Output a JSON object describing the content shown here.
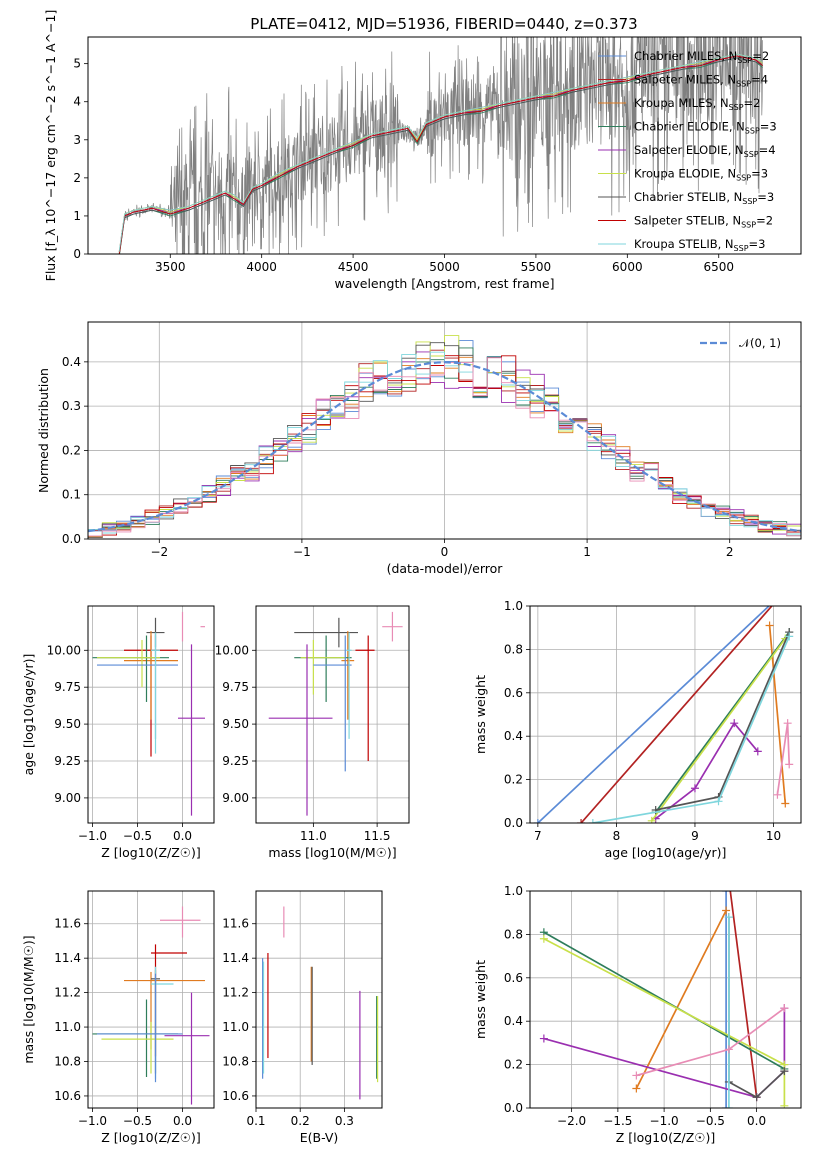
{
  "chart_data": [
    {
      "type": "line",
      "id": "spectrum",
      "title": "PLATE=0412, MJD=51936, FIBERID=0440, z=0.373",
      "xlabel": "wavelength [Angstrom, rest frame]",
      "ylabel": "Flux [f_λ 10^−17 erg cm^−2 s^−1 A^−1]",
      "xlim": [
        3050,
        6950
      ],
      "ylim": [
        0,
        5.7
      ],
      "xticks": [
        3500,
        4000,
        4500,
        5000,
        5500,
        6000,
        6500
      ],
      "yticks": [
        0,
        1,
        2,
        3,
        4,
        5
      ],
      "grid": false,
      "legend": "top-right",
      "legend_entries": [
        {
          "name": "Chabrier MILES",
          "nssp": "2",
          "color": "#5b8bd6"
        },
        {
          "name": "Salpeter MILES",
          "nssp": "4",
          "color": "#b22222"
        },
        {
          "name": "Kroupa MILES",
          "nssp": "2",
          "color": "#e07b20"
        },
        {
          "name": "Chabrier ELODIE",
          "nssp": "3",
          "color": "#2e7d5b"
        },
        {
          "name": "Salpeter ELODIE",
          "nssp": "4",
          "color": "#9a2fb0"
        },
        {
          "name": "Kroupa ELODIE",
          "nssp": "3",
          "color": "#c8e04a"
        },
        {
          "name": "Chabrier STELIB",
          "nssp": "3",
          "color": "#555555"
        },
        {
          "name": "Salpeter STELIB",
          "nssp": "2",
          "color": "#c00000"
        },
        {
          "name": "Kroupa STELIB",
          "nssp": "3",
          "color": "#7fd6dd"
        }
      ],
      "model_x": [
        3220,
        3250,
        3300,
        3400,
        3500,
        3600,
        3700,
        3800,
        3850,
        3900,
        3950,
        4000,
        4100,
        4200,
        4300,
        4400,
        4500,
        4600,
        4700,
        4800,
        4850,
        4900,
        5000,
        5100,
        5200,
        5300,
        5400,
        5500,
        5600,
        5700,
        5800,
        5900,
        6000,
        6100,
        6200,
        6300,
        6400,
        6500,
        6600,
        6700,
        6740
      ],
      "model_y": [
        0,
        1.0,
        1.1,
        1.2,
        1.1,
        1.2,
        1.4,
        1.6,
        1.5,
        1.3,
        1.7,
        1.8,
        2.1,
        2.3,
        2.5,
        2.7,
        2.9,
        3.1,
        3.2,
        3.3,
        3.0,
        3.4,
        3.6,
        3.7,
        3.8,
        3.9,
        4.0,
        4.1,
        4.2,
        4.3,
        4.4,
        4.5,
        4.6,
        4.7,
        4.8,
        4.9,
        5.0,
        5.1,
        5.2,
        5.1,
        5.0
      ]
    },
    {
      "type": "line",
      "id": "residuals",
      "xlabel": "(data-model)/error",
      "ylabel": "Normed distribution",
      "xlim": [
        -2.5,
        2.5
      ],
      "ylim": [
        0,
        0.49
      ],
      "xticks": [
        -2,
        -1,
        0,
        1,
        2
      ],
      "yticks": [
        0,
        0.1,
        0.2,
        0.3,
        0.4
      ],
      "grid": true,
      "legend": "top-right",
      "legend_entries": [
        {
          "name": "𝒩(0, 1)",
          "color": "#5b8bd6"
        }
      ],
      "series_colors": [
        "#5b8bd6",
        "#b22222",
        "#e07b20",
        "#2e7d5b",
        "#9a2fb0",
        "#c8e04a",
        "#555555",
        "#c00000",
        "#7fd6dd",
        "#e88cb5"
      ]
    },
    {
      "type": "scatter",
      "id": "age_vs_Z",
      "xlabel": "Z [log10(Z/Z☉)]",
      "ylabel": "age  [log10(age/yr)]",
      "xlim": [
        -1.05,
        0.35
      ],
      "ylim": [
        8.83,
        10.3
      ],
      "xticks": [
        -1.0,
        -0.5,
        0.0
      ],
      "yticks": [
        9.0,
        9.25,
        9.5,
        9.75,
        10.0
      ],
      "grid": true,
      "points": [
        {
          "x": 0.0,
          "y": 10.16,
          "ex": [
            -0.25,
            0.2
          ],
          "ey": [
            0.1,
            0.1
          ],
          "color": "#e88cb5"
        },
        {
          "x": -0.3,
          "y": 10.12,
          "ex": [
            0.1,
            0.1
          ],
          "ey": [
            0.1,
            0.1
          ],
          "color": "#555555"
        },
        {
          "x": -0.35,
          "y": 10.0,
          "ex": [
            0.3,
            0.3
          ],
          "ey": [
            0.72,
            0.1
          ],
          "color": "#c00000"
        },
        {
          "x": -0.35,
          "y": 9.93,
          "ex": [
            0.3,
            0.3
          ],
          "ey": [
            0.4,
            0.2
          ],
          "color": "#e07b20"
        },
        {
          "x": -0.4,
          "y": 9.95,
          "ex": [
            0.6,
            0.25
          ],
          "ey": [
            0.3,
            0.15
          ],
          "color": "#2e7d5b"
        },
        {
          "x": -0.45,
          "y": 9.95,
          "ex": [
            0.5,
            0.2
          ],
          "ey": [
            0.2,
            0.12
          ],
          "color": "#c8e04a"
        },
        {
          "x": -0.3,
          "y": 9.9,
          "ex": [
            0.65,
            0.25
          ],
          "ey": [
            0.5,
            0.2
          ],
          "color": "#5b8bd6"
        },
        {
          "x": -0.3,
          "y": 10.0,
          "ex": [
            0.05,
            0.05
          ],
          "ey": [
            0.7,
            0.12
          ],
          "color": "#7fd6dd"
        },
        {
          "x": 0.1,
          "y": 9.54,
          "ex": [
            0.15,
            0.15
          ],
          "ey": [
            0.66,
            0.5
          ],
          "color": "#9a2fb0"
        }
      ]
    },
    {
      "type": "scatter",
      "id": "age_vs_mass",
      "xlabel": "mass [log10(M/M☉)]",
      "ylabel": "",
      "xlim": [
        10.55,
        11.75
      ],
      "ylim": [
        8.83,
        10.3
      ],
      "xticks": [
        11.0,
        11.5
      ],
      "yticks": [
        9.0,
        9.25,
        9.5,
        9.75,
        10.0
      ],
      "grid": true,
      "points": [
        {
          "x": 11.62,
          "y": 10.16,
          "ex": [
            0.08,
            0.08
          ],
          "ey": [
            0.1,
            0.1
          ],
          "color": "#e88cb5"
        },
        {
          "x": 11.2,
          "y": 10.12,
          "ex": [
            0.35,
            0.15
          ],
          "ey": [
            0.1,
            0.1
          ],
          "color": "#555555"
        },
        {
          "x": 11.43,
          "y": 10.0,
          "ex": [
            0.1,
            0.05
          ],
          "ey": [
            0.75,
            0.1
          ],
          "color": "#c00000"
        },
        {
          "x": 11.27,
          "y": 9.93,
          "ex": [
            0.05,
            0.05
          ],
          "ey": [
            0.4,
            0.2
          ],
          "color": "#e07b20"
        },
        {
          "x": 11.1,
          "y": 9.95,
          "ex": [
            0.25,
            0.2
          ],
          "ey": [
            0.3,
            0.15
          ],
          "color": "#2e7d5b"
        },
        {
          "x": 11.0,
          "y": 9.95,
          "ex": [
            0.1,
            0.25
          ],
          "ey": [
            0.25,
            0.12
          ],
          "color": "#c8e04a"
        },
        {
          "x": 11.25,
          "y": 9.9,
          "ex": [
            0.25,
            0.05
          ],
          "ey": [
            0.72,
            0.2
          ],
          "color": "#5b8bd6"
        },
        {
          "x": 11.28,
          "y": 10.0,
          "ex": [
            0.02,
            0.02
          ],
          "ey": [
            0.6,
            0.12
          ],
          "color": "#7fd6dd"
        },
        {
          "x": 10.95,
          "y": 9.54,
          "ex": [
            0.3,
            0.2
          ],
          "ey": [
            0.66,
            0.5
          ],
          "color": "#9a2fb0"
        }
      ]
    },
    {
      "type": "line",
      "id": "weight_vs_age",
      "xlabel": "age  [log10(age/yr)]",
      "ylabel": "mass weight",
      "xlim": [
        6.9,
        10.35
      ],
      "ylim": [
        0,
        1.0
      ],
      "xticks": [
        7,
        8,
        9,
        10
      ],
      "yticks": [
        0,
        0.2,
        0.4,
        0.6,
        0.8,
        1.0
      ],
      "grid": true,
      "series": [
        {
          "color": "#5b8bd6",
          "points": [
            [
              7.0,
              0.0
            ],
            [
              10.0,
              1.02
            ]
          ]
        },
        {
          "color": "#b22222",
          "points": [
            [
              7.55,
              0.0
            ],
            [
              10.1,
              1.05
            ]
          ]
        },
        {
          "color": "#e07b20",
          "points": [
            [
              9.95,
              0.91
            ],
            [
              10.15,
              0.09
            ]
          ]
        },
        {
          "color": "#2e7d5b",
          "points": [
            [
              8.5,
              0.05
            ],
            [
              10.2,
              0.88
            ]
          ]
        },
        {
          "color": "#9a2fb0",
          "points": [
            [
              8.5,
              0.02
            ],
            [
              9.0,
              0.16
            ],
            [
              9.5,
              0.46
            ],
            [
              9.8,
              0.33
            ]
          ]
        },
        {
          "color": "#c8e04a",
          "points": [
            [
              8.45,
              0.01
            ],
            [
              10.15,
              0.85
            ]
          ]
        },
        {
          "color": "#555555",
          "points": [
            [
              8.5,
              0.06
            ],
            [
              9.3,
              0.12
            ],
            [
              10.2,
              0.88
            ]
          ]
        },
        {
          "color": "#7fd6dd",
          "points": [
            [
              7.7,
              0.0
            ],
            [
              9.3,
              0.1
            ],
            [
              10.2,
              0.86
            ]
          ]
        },
        {
          "color": "#e88cb5",
          "points": [
            [
              10.05,
              0.13
            ],
            [
              10.18,
              0.46
            ],
            [
              10.2,
              0.27
            ]
          ]
        }
      ]
    },
    {
      "type": "scatter",
      "id": "mass_vs_Z",
      "xlabel": "Z [log10(Z/Z☉)]",
      "ylabel": "mass [log10(M/M☉)]",
      "xlim": [
        -1.05,
        0.35
      ],
      "ylim": [
        10.53,
        11.79
      ],
      "xticks": [
        -1.0,
        -0.5,
        0.0
      ],
      "yticks": [
        10.6,
        10.8,
        11.0,
        11.2,
        11.4,
        11.6
      ],
      "grid": true,
      "points": [
        {
          "x": 0.0,
          "y": 11.62,
          "ex": [
            0.25,
            0.2
          ],
          "ey": [
            0.1,
            0.08
          ],
          "color": "#e88cb5"
        },
        {
          "x": -0.3,
          "y": 11.43,
          "ex": [
            0.05,
            0.35
          ],
          "ey": [
            0.6,
            0.05
          ],
          "color": "#c00000"
        },
        {
          "x": -0.35,
          "y": 11.27,
          "ex": [
            0.3,
            0.6
          ],
          "ey": [
            0.4,
            0.05
          ],
          "color": "#e07b20"
        },
        {
          "x": -0.3,
          "y": 11.28,
          "ex": [
            0.05,
            0.05
          ],
          "ey": [
            0.55,
            0.05
          ],
          "color": "#555555"
        },
        {
          "x": -0.3,
          "y": 11.25,
          "ex": [
            0.05,
            0.2
          ],
          "ey": [
            0.55,
            0.1
          ],
          "color": "#7fd6dd"
        },
        {
          "x": -0.4,
          "y": 10.96,
          "ex": [
            0.6,
            0.35
          ],
          "ey": [
            0.25,
            0.2
          ],
          "color": "#2e7d5b"
        },
        {
          "x": -0.35,
          "y": 10.93,
          "ex": [
            0.55,
            0.25
          ],
          "ey": [
            0.2,
            0.1
          ],
          "color": "#c8e04a"
        },
        {
          "x": -0.3,
          "y": 10.96,
          "ex": [
            0.65,
            0.3
          ],
          "ey": [
            0.28,
            0.35
          ],
          "color": "#5b8bd6"
        },
        {
          "x": 0.1,
          "y": 10.95,
          "ex": [
            0.3,
            0.2
          ],
          "ey": [
            0.4,
            0.25
          ],
          "color": "#9a2fb0"
        }
      ]
    },
    {
      "type": "scatter",
      "id": "mass_vs_EBV",
      "xlabel": "E(B-V)",
      "ylabel": "",
      "xlim": [
        0.1,
        0.385
      ],
      "ylim": [
        10.53,
        11.79
      ],
      "xticks": [
        0.1,
        0.2,
        0.3
      ],
      "yticks": [
        10.6,
        10.8,
        11.0,
        11.2,
        11.4,
        11.6
      ],
      "grid": true,
      "points": [
        {
          "x": 0.163,
          "y": 11.62,
          "ey": [
            0.1,
            0.08
          ],
          "color": "#e88cb5"
        },
        {
          "x": 0.127,
          "y": 11.1,
          "ey": [
            0.28,
            0.33
          ],
          "color": "#c00000"
        },
        {
          "x": 0.115,
          "y": 11.05,
          "ey": [
            0.35,
            0.35
          ],
          "color": "#5b8bd6"
        },
        {
          "x": 0.117,
          "y": 11.08,
          "ey": [
            0.35,
            0.3
          ],
          "color": "#7fd6dd"
        },
        {
          "x": 0.225,
          "y": 11.05,
          "ey": [
            0.25,
            0.3
          ],
          "color": "#e07b20"
        },
        {
          "x": 0.227,
          "y": 11.05,
          "ey": [
            0.27,
            0.3
          ],
          "color": "#555555"
        },
        {
          "x": 0.335,
          "y": 10.88,
          "ey": [
            0.3,
            0.33
          ],
          "color": "#9a2fb0"
        },
        {
          "x": 0.373,
          "y": 10.93,
          "ey": [
            0.23,
            0.25
          ],
          "color": "#2e7d5b"
        },
        {
          "x": 0.375,
          "y": 10.93,
          "ey": [
            0.25,
            0.25
          ],
          "color": "#c8e04a"
        }
      ]
    },
    {
      "type": "line",
      "id": "weight_vs_Z",
      "xlabel": "Z [log10(Z/Z☉)]",
      "ylabel": "mass weight",
      "xlim": [
        -2.45,
        0.48
      ],
      "ylim": [
        0,
        1.0
      ],
      "xticks": [
        -2.0,
        -1.5,
        -1.0,
        -0.5,
        0.0
      ],
      "yticks": [
        0,
        0.2,
        0.4,
        0.6,
        0.8,
        1.0
      ],
      "grid": true,
      "series": [
        {
          "color": "#5b8bd6",
          "points": [
            [
              -0.33,
              0.0
            ],
            [
              -0.33,
              1.0
            ]
          ]
        },
        {
          "color": "#b22222",
          "points": [
            [
              -0.3,
              1.05
            ],
            [
              0.0,
              0.05
            ]
          ]
        },
        {
          "color": "#e07b20",
          "points": [
            [
              -1.3,
              0.09
            ],
            [
              -0.33,
              0.91
            ]
          ]
        },
        {
          "color": "#2e7d5b",
          "points": [
            [
              -2.3,
              0.81
            ],
            [
              0.3,
              0.18
            ]
          ]
        },
        {
          "color": "#9a2fb0",
          "points": [
            [
              -2.3,
              0.32
            ],
            [
              0.0,
              0.05
            ],
            [
              0.3,
              0.17
            ],
            [
              0.3,
              0.46
            ]
          ]
        },
        {
          "color": "#c8e04a",
          "points": [
            [
              -2.3,
              0.78
            ],
            [
              0.3,
              0.2
            ],
            [
              0.3,
              0.01
            ]
          ]
        },
        {
          "color": "#555555",
          "points": [
            [
              -0.3,
              0.88
            ],
            [
              -0.3,
              0.12
            ],
            [
              0.0,
              0.05
            ],
            [
              0.3,
              0.17
            ]
          ]
        },
        {
          "color": "#7fd6dd",
          "points": [
            [
              -0.3,
              0.88
            ],
            [
              -0.3,
              0.0
            ]
          ]
        },
        {
          "color": "#e88cb5",
          "points": [
            [
              -1.3,
              0.15
            ],
            [
              -0.3,
              0.27
            ],
            [
              0.3,
              0.46
            ]
          ]
        }
      ]
    }
  ]
}
